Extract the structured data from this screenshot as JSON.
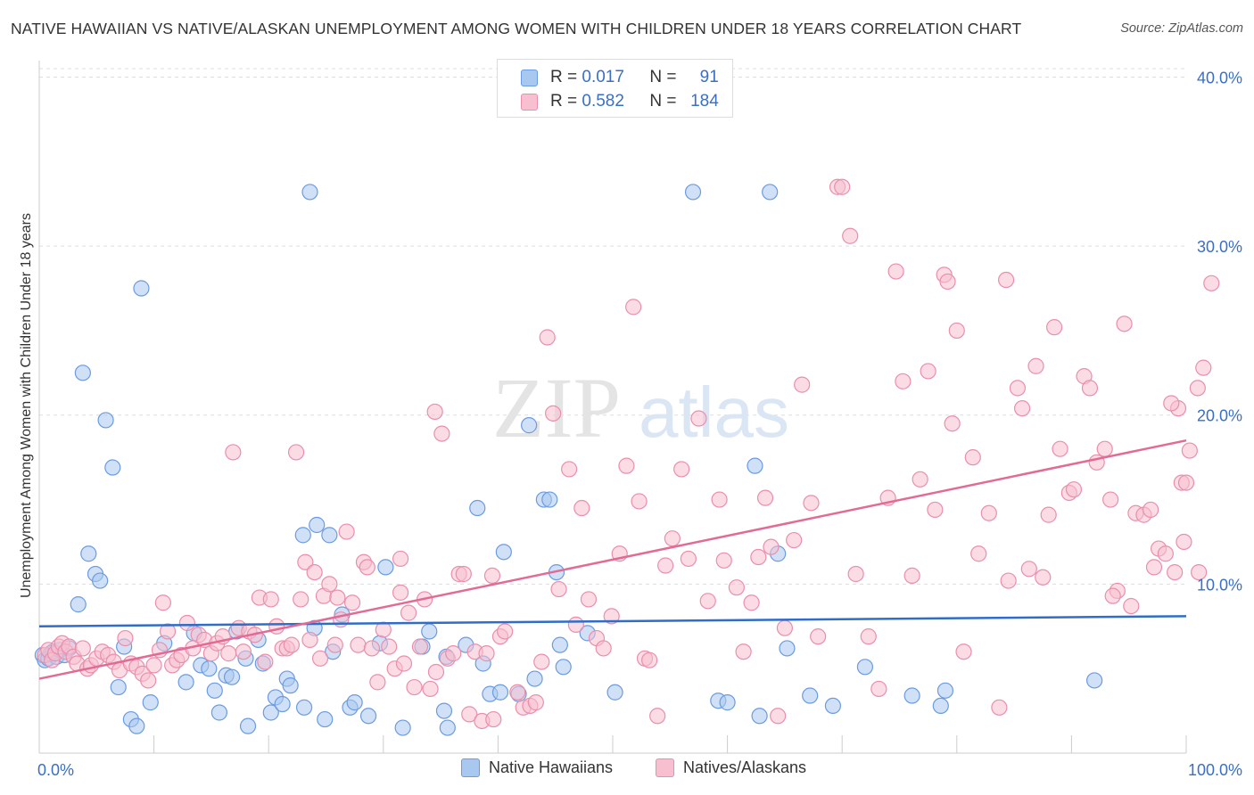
{
  "title": "NATIVE HAWAIIAN VS NATIVE/ALASKAN UNEMPLOYMENT AMONG WOMEN WITH CHILDREN UNDER 18 YEARS CORRELATION CHART",
  "source": "Source: ZipAtlas.com",
  "watermark": {
    "zip": "ZIP",
    "atlas": "atlas"
  },
  "legend_stats": [
    {
      "r_label": "R =",
      "r_value": "0.017",
      "n_label": "N =",
      "n_value": "91"
    },
    {
      "r_label": "R =",
      "r_value": "0.582",
      "n_label": "N =",
      "n_value": "184"
    }
  ],
  "colors": {
    "blue_fill": "#a9c8f0",
    "blue_stroke": "#6b9be0",
    "blue_line": "#2f6dc8",
    "pink_fill": "#f7bfd0",
    "pink_stroke": "#e98fac",
    "pink_line": "#e26b96",
    "tick_text": "#3a6fc4",
    "grid": "#dddddd"
  },
  "chart_data": {
    "type": "scatter",
    "title": "NATIVE HAWAIIAN VS NATIVE/ALASKAN UNEMPLOYMENT AMONG WOMEN WITH CHILDREN UNDER 18 YEARS CORRELATION CHART",
    "xlabel": "",
    "ylabel": "Unemployment Among Women with Children Under 18 years",
    "x_unit": "%",
    "xlim": [
      0,
      100
    ],
    "ylim": [
      0,
      40.5
    ],
    "x_tick_labels": [
      {
        "value": 0,
        "label": "0.0%"
      },
      {
        "value": 100,
        "label": "100.0%"
      }
    ],
    "y_tick_labels": [
      {
        "value": 10,
        "label": "10.0%"
      },
      {
        "value": 20,
        "label": "20.0%"
      },
      {
        "value": 30,
        "label": "30.0%"
      },
      {
        "value": 40,
        "label": "40.0%"
      }
    ],
    "grid": true,
    "legend_position": "bottom-center",
    "series": [
      {
        "name": "Native Hawaiians",
        "color": "#a9c8f0",
        "trend": {
          "x": [
            0,
            100
          ],
          "y": [
            7.5,
            8.1
          ]
        },
        "points": [
          [
            0.3,
            5.8
          ],
          [
            0.5,
            5.5
          ],
          [
            0.8,
            5.6
          ],
          [
            1.0,
            5.9
          ],
          [
            1.2,
            6.0
          ],
          [
            1.5,
            5.7
          ],
          [
            1.8,
            6.1
          ],
          [
            2.2,
            5.8
          ],
          [
            2.6,
            6.2
          ],
          [
            3.4,
            8.8
          ],
          [
            3.8,
            22.5
          ],
          [
            4.3,
            11.8
          ],
          [
            4.9,
            10.6
          ],
          [
            5.3,
            10.2
          ],
          [
            5.8,
            19.7
          ],
          [
            6.4,
            16.9
          ],
          [
            6.9,
            3.9
          ],
          [
            7.4,
            6.3
          ],
          [
            8.0,
            2.0
          ],
          [
            8.5,
            1.6
          ],
          [
            8.9,
            27.5
          ],
          [
            9.7,
            3.0
          ],
          [
            10.9,
            6.5
          ],
          [
            12.8,
            4.2
          ],
          [
            13.5,
            7.1
          ],
          [
            14.1,
            5.2
          ],
          [
            14.8,
            5.0
          ],
          [
            15.3,
            3.7
          ],
          [
            15.7,
            2.4
          ],
          [
            16.3,
            4.6
          ],
          [
            16.8,
            4.5
          ],
          [
            17.2,
            7.2
          ],
          [
            18.0,
            5.6
          ],
          [
            18.2,
            1.6
          ],
          [
            19.1,
            6.7
          ],
          [
            19.5,
            5.3
          ],
          [
            20.2,
            2.4
          ],
          [
            20.6,
            3.3
          ],
          [
            21.2,
            2.9
          ],
          [
            21.6,
            4.4
          ],
          [
            21.9,
            4.0
          ],
          [
            23.0,
            12.9
          ],
          [
            23.1,
            2.7
          ],
          [
            23.6,
            33.2
          ],
          [
            24.0,
            7.4
          ],
          [
            24.2,
            13.5
          ],
          [
            25.3,
            12.9
          ],
          [
            24.9,
            2.0
          ],
          [
            25.6,
            6.0
          ],
          [
            26.4,
            8.2
          ],
          [
            27.1,
            2.7
          ],
          [
            27.5,
            3.0
          ],
          [
            28.7,
            2.2
          ],
          [
            29.7,
            6.5
          ],
          [
            30.2,
            11.0
          ],
          [
            31.7,
            1.5
          ],
          [
            34.0,
            7.2
          ],
          [
            33.4,
            6.3
          ],
          [
            35.3,
            2.5
          ],
          [
            35.5,
            5.7
          ],
          [
            35.6,
            1.5
          ],
          [
            37.2,
            6.4
          ],
          [
            38.2,
            14.5
          ],
          [
            38.7,
            5.3
          ],
          [
            39.3,
            3.5
          ],
          [
            40.2,
            3.6
          ],
          [
            40.5,
            11.9
          ],
          [
            41.8,
            3.5
          ],
          [
            42.7,
            19.4
          ],
          [
            43.2,
            4.4
          ],
          [
            44.0,
            15.0
          ],
          [
            44.5,
            15.0
          ],
          [
            45.1,
            10.7
          ],
          [
            45.4,
            6.4
          ],
          [
            45.7,
            5.1
          ],
          [
            47.8,
            7.1
          ],
          [
            50.2,
            3.6
          ],
          [
            57.0,
            33.2
          ],
          [
            59.2,
            3.1
          ],
          [
            60.0,
            3.0
          ],
          [
            62.8,
            2.2
          ],
          [
            62.4,
            17.0
          ],
          [
            63.7,
            33.2
          ],
          [
            64.4,
            11.8
          ],
          [
            65.2,
            6.2
          ],
          [
            67.2,
            3.4
          ],
          [
            69.2,
            2.8
          ],
          [
            72.0,
            5.1
          ],
          [
            76.1,
            3.4
          ],
          [
            78.6,
            2.8
          ],
          [
            79.0,
            3.7
          ],
          [
            92.0,
            4.3
          ]
        ]
      },
      {
        "name": "Natives/Alaskans",
        "color": "#f7bfd0",
        "trend": {
          "x": [
            0,
            100
          ],
          "y": [
            4.4,
            18.5
          ]
        },
        "points": [
          [
            0.5,
            5.8
          ],
          [
            0.8,
            6.1
          ],
          [
            1.1,
            5.5
          ],
          [
            1.4,
            5.9
          ],
          [
            1.7,
            6.3
          ],
          [
            2.0,
            6.5
          ],
          [
            2.3,
            6.0
          ],
          [
            2.6,
            6.3
          ],
          [
            3.0,
            5.7
          ],
          [
            3.3,
            5.3
          ],
          [
            3.8,
            6.2
          ],
          [
            4.2,
            5.0
          ],
          [
            4.5,
            5.2
          ],
          [
            5.0,
            5.6
          ],
          [
            5.5,
            6.0
          ],
          [
            6.0,
            5.8
          ],
          [
            6.5,
            5.4
          ],
          [
            7.0,
            4.9
          ],
          [
            7.5,
            6.8
          ],
          [
            8.0,
            5.3
          ],
          [
            8.5,
            5.1
          ],
          [
            9.0,
            4.7
          ],
          [
            9.5,
            4.3
          ],
          [
            10.0,
            5.2
          ],
          [
            10.5,
            6.1
          ],
          [
            10.8,
            8.9
          ],
          [
            11.2,
            7.2
          ],
          [
            11.6,
            5.2
          ],
          [
            12.0,
            5.5
          ],
          [
            12.4,
            5.8
          ],
          [
            12.9,
            7.7
          ],
          [
            13.4,
            6.2
          ],
          [
            13.9,
            7.0
          ],
          [
            14.4,
            6.7
          ],
          [
            15.0,
            5.9
          ],
          [
            15.5,
            6.5
          ],
          [
            16.0,
            6.9
          ],
          [
            16.5,
            5.9
          ],
          [
            16.9,
            17.8
          ],
          [
            17.4,
            7.4
          ],
          [
            17.8,
            6.0
          ],
          [
            18.3,
            7.2
          ],
          [
            18.8,
            7.0
          ],
          [
            19.2,
            9.2
          ],
          [
            19.7,
            5.4
          ],
          [
            20.2,
            9.1
          ],
          [
            20.7,
            7.5
          ],
          [
            21.2,
            6.2
          ],
          [
            21.6,
            6.2
          ],
          [
            22.0,
            6.4
          ],
          [
            22.4,
            17.8
          ],
          [
            22.8,
            9.1
          ],
          [
            23.2,
            11.3
          ],
          [
            23.6,
            6.7
          ],
          [
            24.0,
            10.7
          ],
          [
            24.5,
            5.6
          ],
          [
            24.8,
            9.3
          ],
          [
            25.3,
            10.0
          ],
          [
            25.8,
            6.4
          ],
          [
            26.3,
            7.9
          ],
          [
            26.8,
            13.1
          ],
          [
            27.3,
            8.9
          ],
          [
            27.8,
            6.4
          ],
          [
            28.3,
            11.3
          ],
          [
            28.6,
            11.0
          ],
          [
            29.0,
            6.2
          ],
          [
            29.5,
            4.2
          ],
          [
            30.0,
            7.3
          ],
          [
            30.5,
            6.3
          ],
          [
            31.0,
            5.0
          ],
          [
            31.5,
            11.5
          ],
          [
            31.8,
            5.3
          ],
          [
            32.2,
            8.3
          ],
          [
            32.7,
            3.9
          ],
          [
            33.2,
            6.3
          ],
          [
            33.6,
            9.1
          ],
          [
            34.1,
            3.8
          ],
          [
            34.6,
            4.8
          ],
          [
            35.1,
            18.9
          ],
          [
            35.6,
            5.6
          ],
          [
            36.1,
            5.9
          ],
          [
            36.6,
            10.6
          ],
          [
            37.0,
            10.6
          ],
          [
            37.5,
            2.3
          ],
          [
            38.0,
            6.0
          ],
          [
            38.6,
            1.9
          ],
          [
            39.0,
            5.9
          ],
          [
            39.6,
            2.0
          ],
          [
            40.2,
            6.9
          ],
          [
            40.6,
            7.2
          ],
          [
            41.7,
            3.6
          ],
          [
            42.2,
            2.7
          ],
          [
            42.8,
            2.8
          ],
          [
            43.3,
            3.0
          ],
          [
            43.8,
            5.4
          ],
          [
            44.3,
            24.6
          ],
          [
            44.8,
            20.1
          ],
          [
            45.3,
            9.7
          ],
          [
            46.2,
            16.8
          ],
          [
            46.8,
            7.6
          ],
          [
            47.3,
            14.5
          ],
          [
            47.9,
            9.1
          ],
          [
            48.6,
            6.8
          ],
          [
            49.2,
            6.2
          ],
          [
            49.9,
            8.1
          ],
          [
            50.6,
            11.8
          ],
          [
            51.2,
            17.0
          ],
          [
            51.8,
            26.4
          ],
          [
            52.3,
            14.9
          ],
          [
            52.8,
            5.6
          ],
          [
            53.2,
            5.5
          ],
          [
            53.9,
            2.2
          ],
          [
            54.6,
            11.1
          ],
          [
            55.2,
            12.7
          ],
          [
            56.0,
            16.8
          ],
          [
            56.6,
            11.5
          ],
          [
            57.5,
            19.8
          ],
          [
            58.3,
            9.0
          ],
          [
            59.3,
            15.0
          ],
          [
            59.7,
            11.4
          ],
          [
            60.8,
            9.8
          ],
          [
            61.4,
            6.0
          ],
          [
            62.1,
            8.9
          ],
          [
            62.7,
            11.6
          ],
          [
            63.3,
            15.1
          ],
          [
            63.8,
            12.2
          ],
          [
            64.4,
            2.2
          ],
          [
            65.0,
            7.4
          ],
          [
            65.8,
            12.6
          ],
          [
            66.5,
            21.8
          ],
          [
            67.3,
            14.8
          ],
          [
            67.9,
            6.9
          ],
          [
            69.6,
            33.5
          ],
          [
            70.0,
            33.5
          ],
          [
            70.7,
            30.6
          ],
          [
            71.2,
            10.6
          ],
          [
            72.3,
            6.9
          ],
          [
            73.2,
            3.8
          ],
          [
            74.0,
            15.1
          ],
          [
            74.7,
            28.5
          ],
          [
            75.3,
            22.0
          ],
          [
            76.1,
            10.5
          ],
          [
            76.8,
            16.2
          ],
          [
            77.5,
            22.6
          ],
          [
            78.1,
            14.4
          ],
          [
            78.9,
            28.3
          ],
          [
            79.2,
            27.9
          ],
          [
            79.6,
            19.5
          ],
          [
            80.0,
            25.0
          ],
          [
            80.6,
            6.0
          ],
          [
            81.4,
            17.5
          ],
          [
            81.9,
            11.8
          ],
          [
            82.8,
            14.2
          ],
          [
            83.7,
            2.7
          ],
          [
            84.3,
            28.0
          ],
          [
            84.5,
            10.2
          ],
          [
            85.3,
            21.6
          ],
          [
            85.7,
            20.4
          ],
          [
            86.3,
            10.9
          ],
          [
            86.9,
            22.9
          ],
          [
            87.5,
            10.4
          ],
          [
            88.0,
            14.1
          ],
          [
            88.5,
            25.2
          ],
          [
            89.0,
            18.0
          ],
          [
            89.8,
            15.4
          ],
          [
            90.2,
            15.6
          ],
          [
            91.1,
            22.3
          ],
          [
            91.6,
            21.6
          ],
          [
            92.2,
            17.2
          ],
          [
            92.9,
            18.0
          ],
          [
            93.4,
            15.0
          ],
          [
            94.0,
            9.6
          ],
          [
            94.6,
            25.4
          ],
          [
            95.2,
            8.7
          ],
          [
            95.6,
            14.2
          ],
          [
            96.3,
            14.1
          ],
          [
            96.9,
            14.4
          ],
          [
            97.6,
            12.1
          ],
          [
            98.2,
            11.8
          ],
          [
            99.0,
            10.7
          ],
          [
            99.3,
            20.4
          ],
          [
            99.8,
            12.5
          ],
          [
            100.3,
            17.9
          ],
          [
            101.0,
            21.6
          ],
          [
            101.5,
            22.8
          ],
          [
            102.2,
            27.8
          ],
          [
            98.7,
            20.7
          ],
          [
            99.6,
            16.0
          ],
          [
            97.2,
            11.0
          ],
          [
            93.6,
            9.3
          ],
          [
            101.1,
            10.7
          ],
          [
            100.0,
            16.0
          ],
          [
            34.5,
            20.2
          ],
          [
            39.5,
            10.5
          ],
          [
            26.0,
            9.2
          ],
          [
            31.5,
            9.5
          ]
        ]
      }
    ]
  },
  "bottom_legend": [
    {
      "label": "Native Hawaiians"
    },
    {
      "label": "Natives/Alaskans"
    }
  ]
}
